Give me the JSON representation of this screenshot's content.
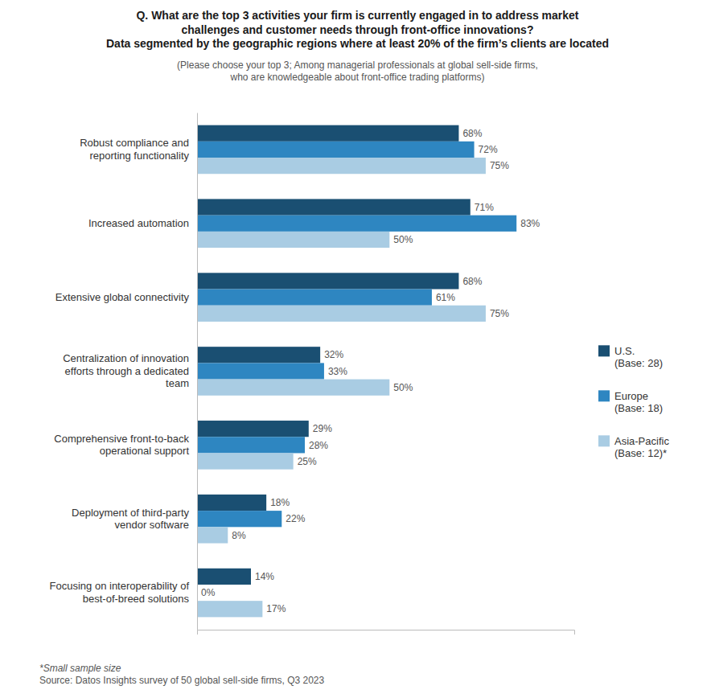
{
  "chart_data": {
    "type": "bar",
    "orientation": "horizontal",
    "title": "Q. What are the top 3 activities your firm is currently engaged in to address market\nchallenges and customer needs through front-office innovations?\nData segmented by the geographic regions where at least 20% of the firm’s clients are located",
    "subtitle": "(Please choose your top 3;  Among managerial professionals at global sell-side firms,\nwho are knowledgeable about front-office trading platforms)",
    "annotations": [
      "*Small sample size",
      "Source: Datos Insights survey of 50 global sell-side firms, Q3 2023"
    ],
    "categories": [
      "Focusing on interoperability of\nbest-of-breed solutions",
      "Deployment of third-party\nvendor software",
      "Comprehensive front-to-back\noperational support",
      "Centralization of innovation\nefforts through a dedicated\nteam",
      "Extensive global connectivity",
      "Increased automation",
      "Robust compliance and\nreporting functionality"
    ],
    "series": [
      {
        "name": "U.S.\n(Base: 28)",
        "color": "#1a4f72",
        "values": [
          14,
          18,
          29,
          32,
          68,
          71,
          68
        ],
        "value_labels": [
          "14%",
          "18%",
          "29%",
          "32%",
          "68%",
          "71%",
          "68%"
        ]
      },
      {
        "name": "Europe\n(Base: 18)",
        "color": "#2e86c1",
        "values": [
          0,
          22,
          28,
          33,
          61,
          83,
          72
        ],
        "value_labels": [
          "0%",
          "22%",
          "28%",
          "33%",
          "61%",
          "83%",
          "72%"
        ]
      },
      {
        "name": "Asia-Pacific\n(Base: 12)*",
        "color": "#a9cce3",
        "values": [
          17,
          8,
          25,
          50,
          75,
          50,
          75
        ],
        "value_labels": [
          "17%",
          "8%",
          "25%",
          "50%",
          "75%",
          "50%",
          "75%"
        ]
      }
    ],
    "xlim": [
      0,
      98
    ],
    "xticks": [],
    "tick_labels": "y",
    "data_labels": true,
    "grid": false,
    "legend": "right"
  }
}
